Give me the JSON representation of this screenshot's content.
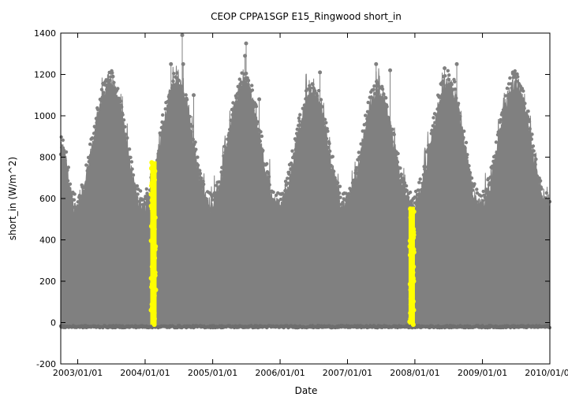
{
  "chart_data": {
    "type": "scatter",
    "title": "CEOP CPPA1SGP E15_Ringwood  short_in",
    "xlabel": "Date",
    "ylabel": "short_in (W/m^2)",
    "ylim": [
      -200,
      1400
    ],
    "y_ticks": [
      -200,
      0,
      200,
      400,
      600,
      800,
      1000,
      1200,
      1400
    ],
    "x_range": [
      "2002-10-01",
      "2010-01-01"
    ],
    "x_ticks": [
      "2003/01/01",
      "2004/01/01",
      "2005/01/01",
      "2006/01/01",
      "2007/01/01",
      "2008/01/01",
      "2009/01/01",
      "2010/01/01"
    ],
    "grid": false,
    "legend": "none",
    "colors": {
      "main": "#808080",
      "highlight": "#ffff00"
    },
    "series": [
      {
        "role": "main",
        "seasonal_envelope_peaks": [
          {
            "date": "2003-06-25",
            "value": 1150
          },
          {
            "date": "2004-06-20",
            "value": 1150
          },
          {
            "date": "2005-06-20",
            "value": 1150
          },
          {
            "date": "2006-06-25",
            "value": 1100
          },
          {
            "date": "2007-06-10",
            "value": 1100
          },
          {
            "date": "2008-07-01",
            "value": 1150
          },
          {
            "date": "2009-07-01",
            "value": 1150
          }
        ],
        "seasonal_envelope_troughs": [
          {
            "date": "2002-12-15",
            "value": 550
          },
          {
            "date": "2003-12-20",
            "value": 560
          },
          {
            "date": "2004-12-20",
            "value": 560
          },
          {
            "date": "2005-12-20",
            "value": 560
          },
          {
            "date": "2006-12-20",
            "value": 560
          },
          {
            "date": "2007-12-20",
            "value": 560
          },
          {
            "date": "2008-12-20",
            "value": 560
          },
          {
            "date": "2009-12-20",
            "value": 560
          }
        ],
        "early_period_peak": {
          "date": "2002-10-10",
          "value": 830
        },
        "outliers": [
          {
            "date": "2004-07-20",
            "value": 1390
          },
          {
            "date": "2005-07-01",
            "value": 1350
          },
          {
            "date": "2005-06-25",
            "value": 1290
          },
          {
            "date": "2004-05-20",
            "value": 1250
          },
          {
            "date": "2004-07-25",
            "value": 1250
          },
          {
            "date": "2007-06-05",
            "value": 1250
          },
          {
            "date": "2008-06-10",
            "value": 1230
          },
          {
            "date": "2008-08-15",
            "value": 1250
          },
          {
            "date": "2009-06-15",
            "value": 1210
          },
          {
            "date": "2006-08-05",
            "value": 1210
          },
          {
            "date": "2003-07-10",
            "value": 1190
          },
          {
            "date": "2006-07-15",
            "value": 1080
          },
          {
            "date": "2004-09-20",
            "value": 1100
          },
          {
            "date": "2005-09-10",
            "value": 1080
          },
          {
            "date": "2007-08-20",
            "value": 1220
          }
        ],
        "min_value": -20
      },
      {
        "role": "highlight",
        "segments": [
          {
            "date": "2004-02-15",
            "min": -10,
            "max": 780
          },
          {
            "date": "2007-12-15",
            "min": -10,
            "max": 560
          }
        ]
      }
    ]
  }
}
